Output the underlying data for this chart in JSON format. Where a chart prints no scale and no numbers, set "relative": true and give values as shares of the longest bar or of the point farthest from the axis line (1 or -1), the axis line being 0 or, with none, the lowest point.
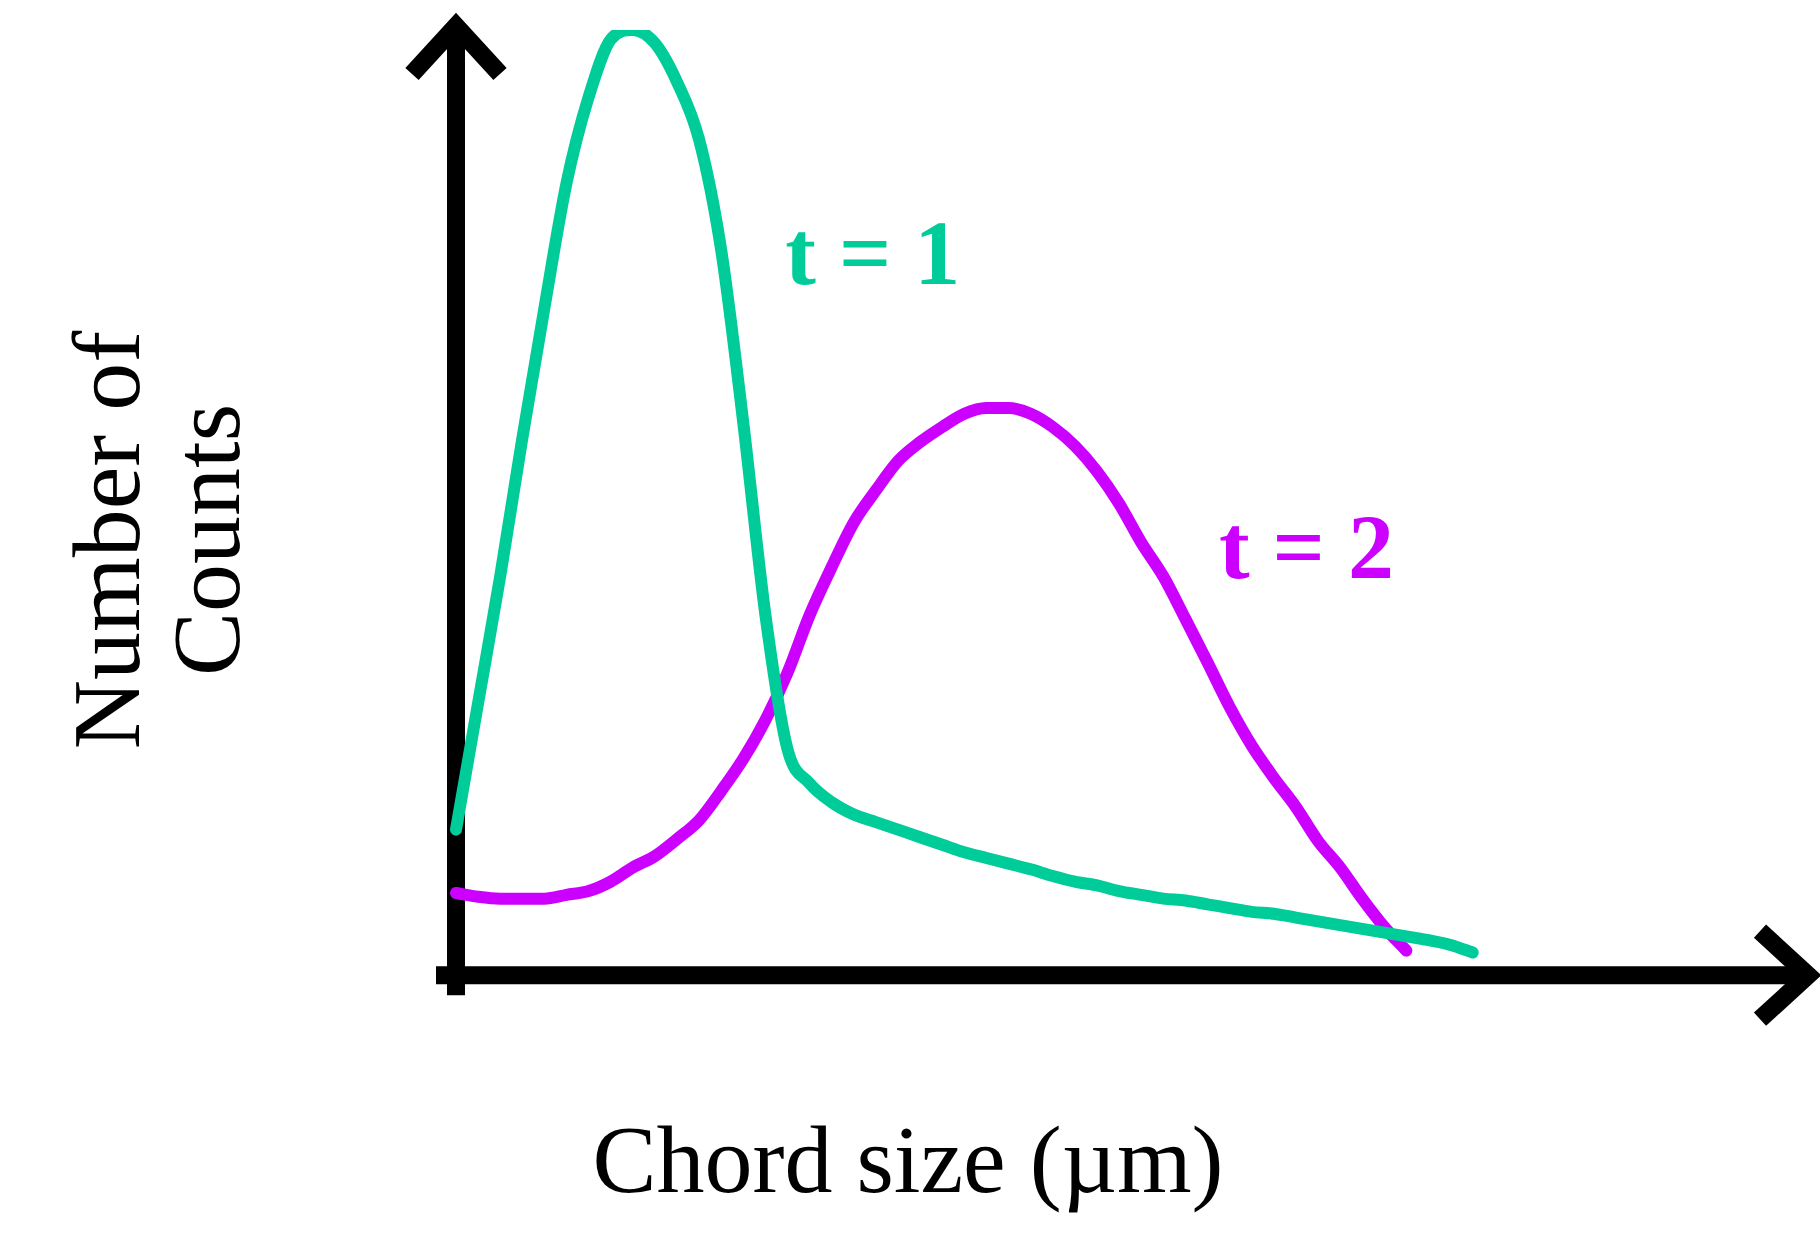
{
  "chart_data": {
    "type": "line",
    "relative": true,
    "xlabel": "Chord size (µm)",
    "ylabel": "Number of\nCounts",
    "grid": false,
    "legend": false,
    "marker": "none",
    "line_style": "solid",
    "categories": [
      null,
      null,
      null,
      null,
      null,
      null,
      null,
      null,
      null,
      null,
      null,
      null,
      null,
      null,
      null,
      null,
      null,
      null,
      null,
      null,
      null,
      null,
      null,
      null,
      null,
      null,
      null,
      null,
      null,
      null,
      null,
      null,
      null,
      null,
      null,
      null,
      null,
      null,
      null,
      null,
      null,
      null,
      null,
      null,
      null,
      null,
      null,
      null,
      null,
      null,
      null,
      null,
      null,
      null,
      null,
      null,
      null,
      null,
      null,
      null
    ],
    "series": [
      {
        "name": "t = 1",
        "color": "#00cc99",
        "values": [
          0.154,
          0.288,
          0.422,
          0.568,
          0.706,
          0.838,
          0.929,
          0.99,
          1,
          0.986,
          0.945,
          0.884,
          0.767,
          0.584,
          0.381,
          0.239,
          0.203,
          0.183,
          0.17,
          0.162,
          0.154,
          0.146,
          0.138,
          0.13,
          0.124,
          0.118,
          0.112,
          0.105,
          0.099,
          0.095,
          0.089,
          0.085,
          0.081,
          0.079,
          0.075,
          0.071,
          0.067,
          0.065,
          0.061,
          0.057,
          0.053,
          0.049,
          0.045,
          0.041,
          0.037,
          0.032,
          0.024,
          null,
          null,
          null,
          null,
          null,
          null,
          null,
          null,
          null,
          null,
          null,
          null,
          null
        ]
      },
      {
        "name": "t = 2",
        "color": "#cc00ff",
        "values": [
          0.087,
          0.083,
          0.081,
          0.081,
          0.081,
          0.085,
          0.089,
          0.099,
          0.114,
          0.126,
          0.144,
          0.164,
          0.195,
          0.229,
          0.27,
          0.32,
          0.381,
          0.432,
          0.479,
          0.513,
          0.544,
          0.564,
          0.58,
          0.594,
          0.6,
          0.6,
          0.594,
          0.58,
          0.56,
          0.533,
          0.499,
          0.458,
          0.422,
          0.377,
          0.331,
          0.284,
          0.243,
          0.209,
          0.178,
          0.142,
          0.114,
          0.081,
          0.051,
          0.026,
          null,
          null,
          null,
          null,
          null,
          null,
          null,
          null,
          null,
          null,
          null,
          null,
          null,
          null,
          null,
          null
        ]
      }
    ]
  }
}
